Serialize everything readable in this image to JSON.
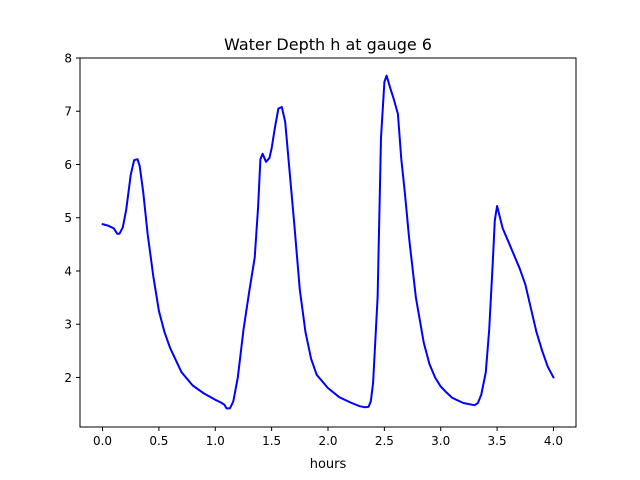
{
  "chart_data": {
    "type": "line",
    "title": "Water Depth h at gauge 6",
    "xlabel": "hours",
    "ylabel": "",
    "xlim": [
      -0.2,
      4.2
    ],
    "ylim": [
      1.07,
      8.0
    ],
    "xticks": [
      0.0,
      0.5,
      1.0,
      1.5,
      2.0,
      2.5,
      3.0,
      3.5,
      4.0
    ],
    "xtick_labels": [
      "0.0",
      "0.5",
      "1.0",
      "1.5",
      "2.0",
      "2.5",
      "3.0",
      "3.5",
      "4.0"
    ],
    "yticks": [
      2,
      3,
      4,
      5,
      6,
      7,
      8
    ],
    "ytick_labels": [
      "2",
      "3",
      "4",
      "5",
      "6",
      "7",
      "8"
    ],
    "grid": false,
    "series": [
      {
        "color": "#0000ff",
        "x": [
          0.0,
          0.05,
          0.1,
          0.13,
          0.15,
          0.18,
          0.21,
          0.25,
          0.28,
          0.31,
          0.33,
          0.36,
          0.4,
          0.45,
          0.5,
          0.55,
          0.6,
          0.7,
          0.8,
          0.9,
          1.0,
          1.05,
          1.08,
          1.1,
          1.13,
          1.16,
          1.2,
          1.25,
          1.3,
          1.35,
          1.38,
          1.4,
          1.42,
          1.45,
          1.48,
          1.5,
          1.53,
          1.56,
          1.59,
          1.62,
          1.65,
          1.7,
          1.75,
          1.8,
          1.85,
          1.9,
          2.0,
          2.1,
          2.2,
          2.28,
          2.33,
          2.36,
          2.38,
          2.4,
          2.44,
          2.47,
          2.5,
          2.52,
          2.55,
          2.58,
          2.62,
          2.65,
          2.68,
          2.72,
          2.78,
          2.85,
          2.9,
          2.95,
          3.0,
          3.05,
          3.1,
          3.2,
          3.3,
          3.33,
          3.36,
          3.4,
          3.43,
          3.46,
          3.48,
          3.5,
          3.55,
          3.6,
          3.65,
          3.7,
          3.75,
          3.8,
          3.85,
          3.9,
          3.95,
          4.0
        ],
        "y": [
          4.88,
          4.85,
          4.8,
          4.7,
          4.7,
          4.82,
          5.15,
          5.8,
          6.08,
          6.1,
          5.97,
          5.5,
          4.7,
          3.9,
          3.25,
          2.85,
          2.55,
          2.1,
          1.85,
          1.7,
          1.58,
          1.53,
          1.49,
          1.42,
          1.42,
          1.55,
          2.0,
          2.9,
          3.6,
          4.25,
          5.2,
          6.1,
          6.2,
          6.05,
          6.12,
          6.3,
          6.7,
          7.05,
          7.08,
          6.8,
          6.1,
          4.9,
          3.65,
          2.85,
          2.35,
          2.05,
          1.8,
          1.63,
          1.53,
          1.46,
          1.44,
          1.45,
          1.55,
          1.9,
          3.5,
          6.5,
          7.55,
          7.67,
          7.45,
          7.25,
          6.95,
          6.1,
          5.5,
          4.6,
          3.5,
          2.65,
          2.25,
          2.0,
          1.83,
          1.72,
          1.62,
          1.52,
          1.48,
          1.52,
          1.68,
          2.1,
          2.9,
          4.1,
          4.95,
          5.22,
          4.8,
          4.55,
          4.3,
          4.05,
          3.75,
          3.3,
          2.85,
          2.5,
          2.2,
          2.0
        ]
      }
    ]
  }
}
